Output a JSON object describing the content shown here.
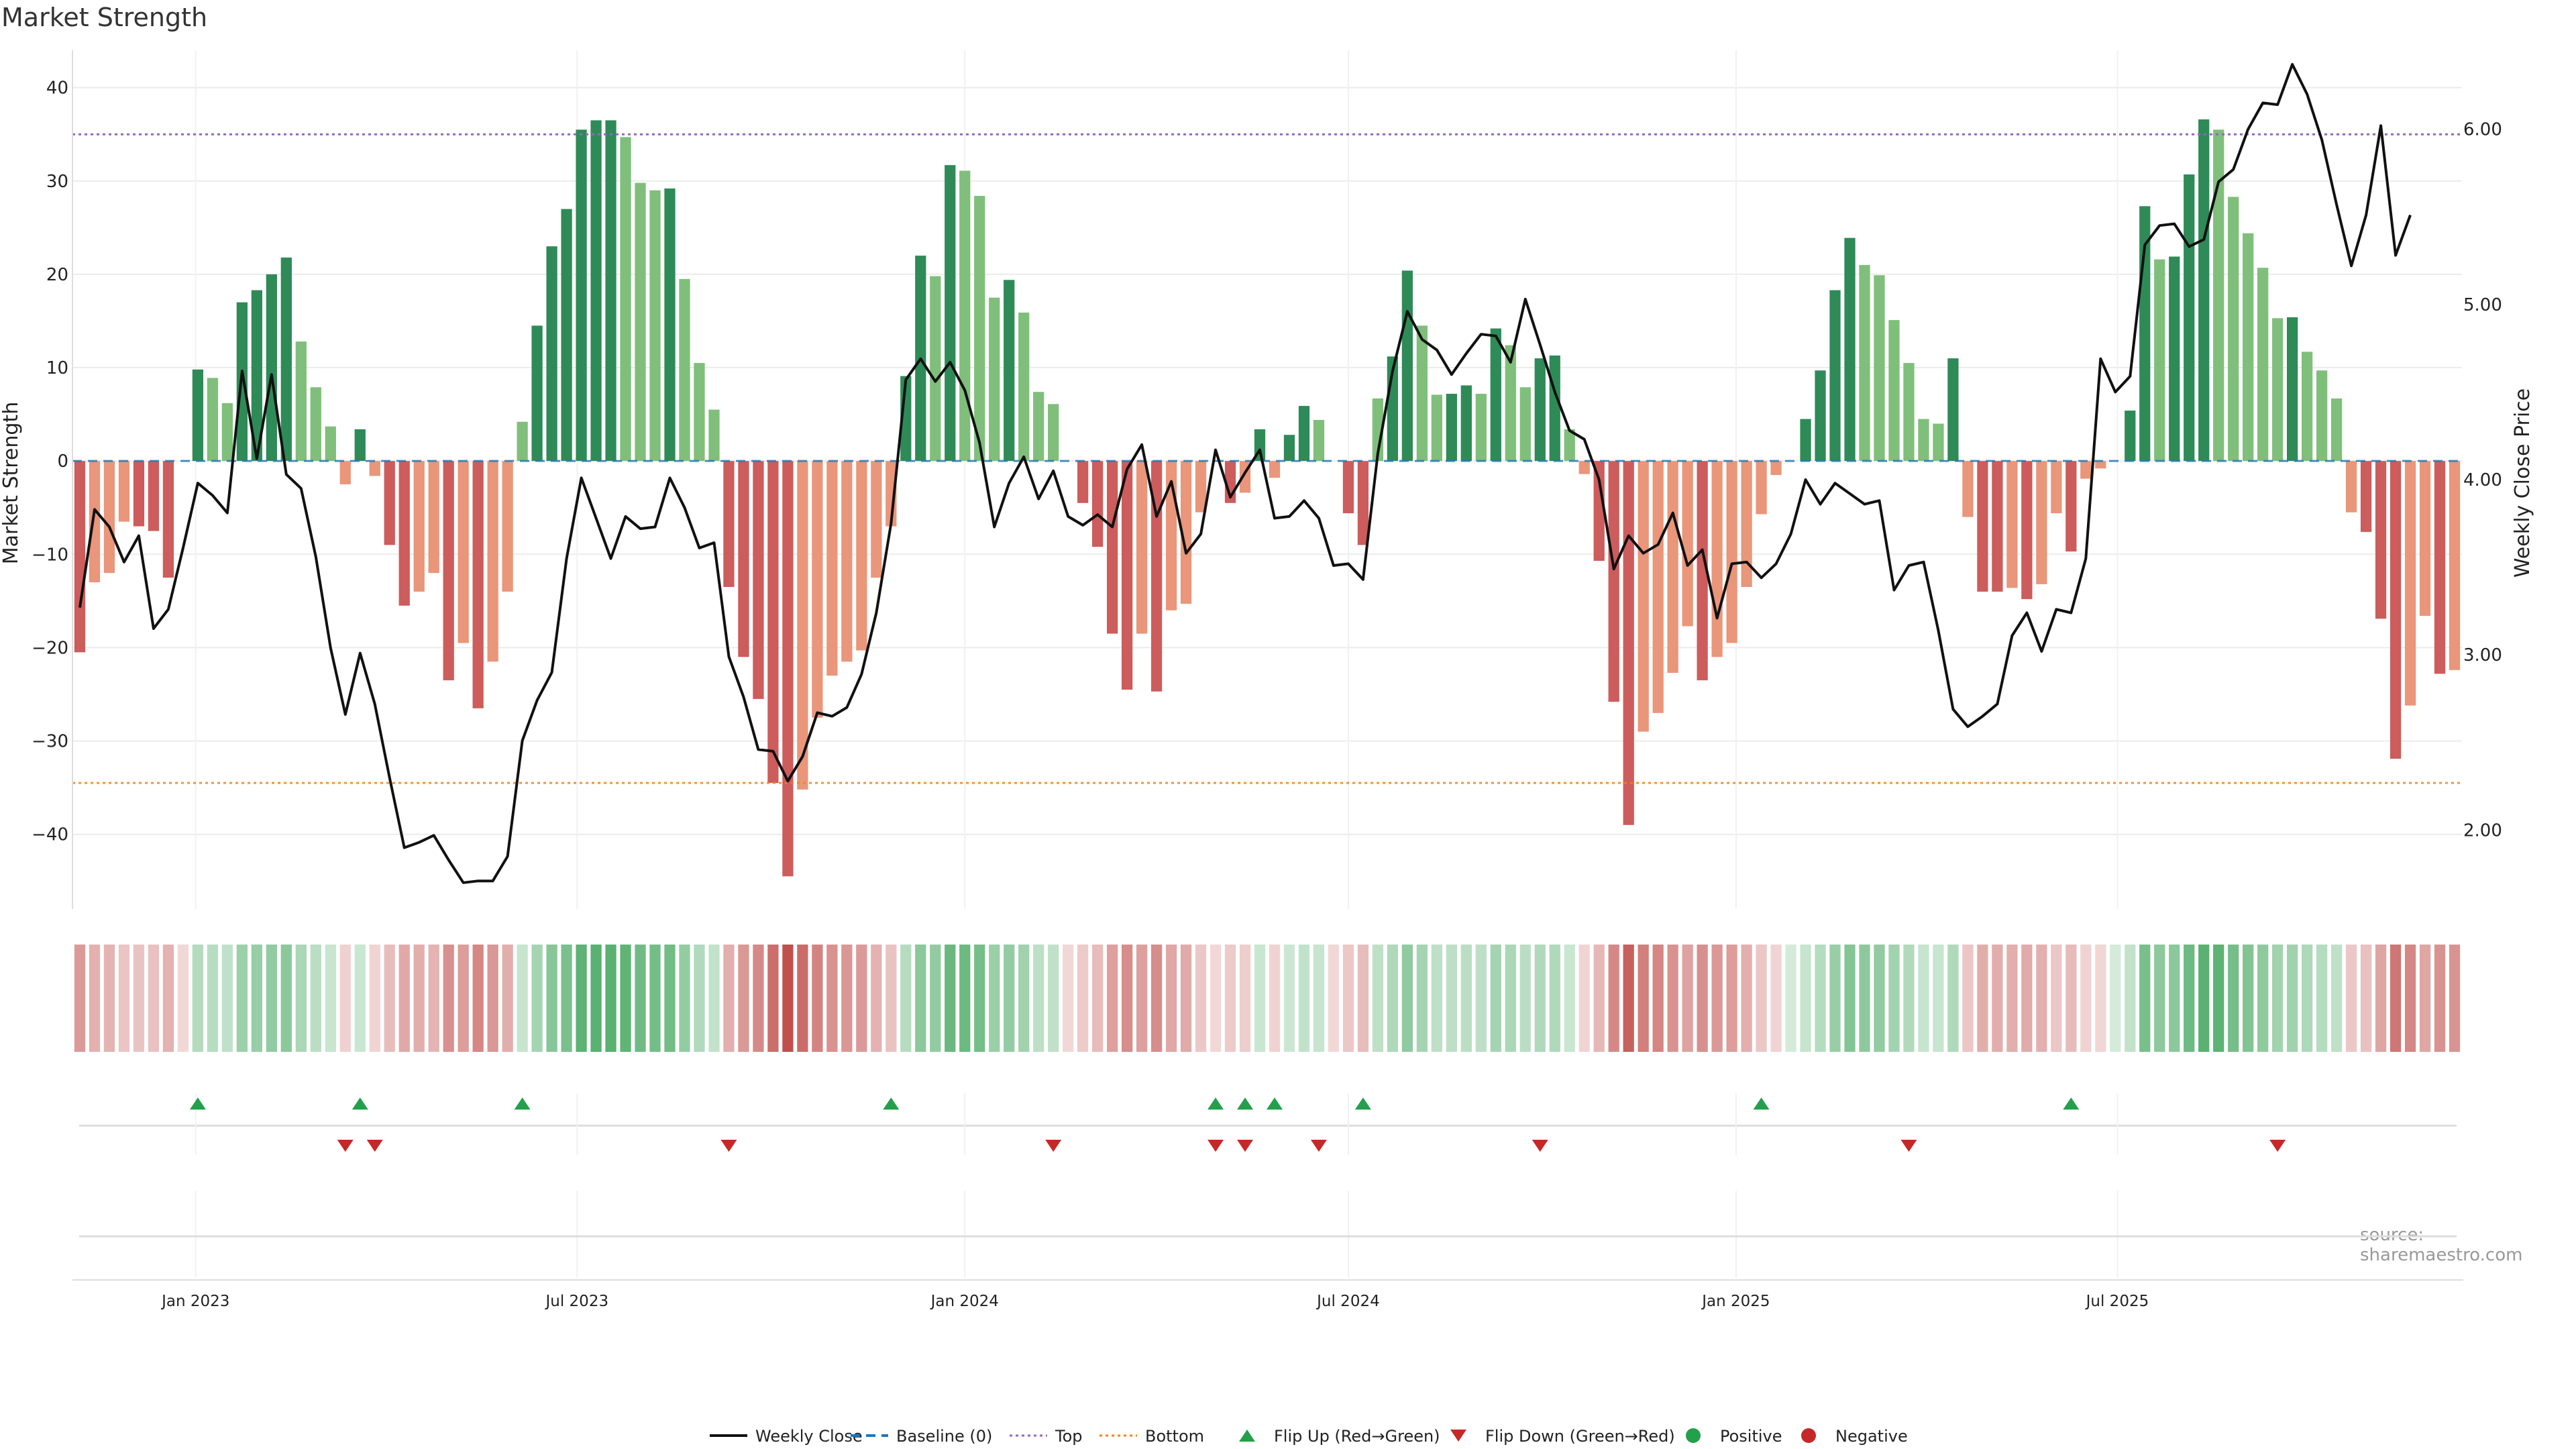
{
  "title": "Market Strength",
  "source_note": "source: sharemaestro.com",
  "colors": {
    "pos_strong": "#2e8b57",
    "pos_weak": "#7fbf7b",
    "neg_strong": "#cd5c5c",
    "neg_weak": "#e9967a",
    "price_line": "#111111",
    "baseline": "#1f77b4",
    "top_line": "#9467bd",
    "bottom_line": "#ff7f0e",
    "flip_up": "#22a04b",
    "flip_down": "#c62828",
    "positive": "#22a04b",
    "negative": "#c62828"
  },
  "chart_data": {
    "type": "bar",
    "title": "Market Strength",
    "ylabel": "Market Strength",
    "y2label": "Weekly Close Price",
    "ylim": [
      -48,
      44
    ],
    "y2lim": [
      1.55,
      6.45
    ],
    "yticks": [
      -40,
      -30,
      -20,
      -10,
      0,
      10,
      20,
      30,
      40
    ],
    "y2ticks": [
      "2.00",
      "3.00",
      "4.00",
      "5.00",
      "6.00"
    ],
    "y2tick_values": [
      2,
      3,
      4,
      5,
      6
    ],
    "top_threshold": 35,
    "bottom_threshold": -34.5,
    "x_start": "2022-11-07",
    "x_tick_labels": [
      "Jan 2023",
      "Jul 2023",
      "Jan 2024",
      "Jul 2024",
      "Jan 2025",
      "Jul 2025"
    ],
    "x_tick_dates": [
      "2023-01-01",
      "2023-07-01",
      "2024-01-01",
      "2024-07-01",
      "2025-01-01",
      "2025-07-01"
    ],
    "strength": [
      -20.5,
      -13,
      -12,
      -6.5,
      -7,
      -7.5,
      -12.5,
      -0.3,
      9.8,
      8.9,
      6.2,
      17,
      18.3,
      20,
      21.8,
      12.8,
      7.9,
      3.7,
      -2.5,
      3.4,
      -1.6,
      -9,
      -15.5,
      -14,
      -12,
      -23.5,
      -19.5,
      -26.5,
      -21.5,
      -14,
      4.2,
      14.5,
      23,
      27,
      35.5,
      36.5,
      36.5,
      34.7,
      29.8,
      29,
      29.2,
      19.5,
      10.5,
      5.5,
      -13.5,
      -21,
      -25.5,
      -34.5,
      -44.5,
      -35.2,
      -27.5,
      -23,
      -21.5,
      -20.3,
      -12.5,
      -7,
      9.1,
      22,
      19.8,
      31.7,
      31.1,
      28.4,
      17.5,
      19.4,
      15.9,
      7.4,
      6.1,
      -0.2,
      -4.5,
      -9.2,
      -18.5,
      -24.5,
      -18.5,
      -24.7,
      -16,
      -15.3,
      -5.5,
      -0.3,
      -4.5,
      -3.4,
      3.4,
      -1.8,
      2.8,
      5.9,
      4.4,
      -0.2,
      -5.6,
      -9,
      6.7,
      11.2,
      20.4,
      14.5,
      7.1,
      7.2,
      8.1,
      7.2,
      14.2,
      12.4,
      7.9,
      11,
      11.3,
      3.4,
      -1.4,
      -10.7,
      -25.8,
      -39,
      -29,
      -27,
      -22.7,
      -17.7,
      -23.5,
      -21,
      -19.5,
      -13.5,
      -5.7,
      -1.5,
      0.2,
      4.5,
      9.7,
      18.3,
      23.9,
      21,
      19.9,
      15.1,
      10.5,
      4.5,
      4,
      11,
      -6,
      -14,
      -14,
      -13.6,
      -14.8,
      -13.2,
      -5.6,
      -9.7,
      -1.9,
      -0.8,
      0.3,
      5.4,
      27.3,
      21.6,
      21.9,
      30.7,
      36.6,
      35.5,
      28.3,
      24.4,
      20.7,
      15.3,
      15.4,
      11.7,
      9.7,
      6.7,
      -5.5,
      -7.6,
      -16.9,
      -31.9,
      -26.2,
      -16.6,
      -22.8,
      -22.4
    ],
    "weekly_close": [
      3.27,
      3.83,
      3.73,
      3.53,
      3.68,
      3.15,
      3.26,
      3.61,
      3.98,
      3.91,
      3.81,
      4.62,
      4.12,
      4.6,
      4.03,
      3.95,
      3.56,
      3.04,
      2.66,
      3.01,
      2.72,
      2.3,
      1.9,
      1.93,
      1.97,
      1.83,
      1.7,
      1.71,
      1.71,
      1.85,
      2.51,
      2.74,
      2.9,
      3.55,
      4.01,
      3.78,
      3.55,
      3.79,
      3.72,
      3.73,
      4.01,
      3.84,
      3.61,
      3.64,
      2.99,
      2.76,
      2.46,
      2.45,
      2.28,
      2.42,
      2.67,
      2.65,
      2.7,
      2.89,
      3.24,
      3.75,
      4.57,
      4.69,
      4.56,
      4.67,
      4.51,
      4.21,
      3.73,
      3.98,
      4.13,
      3.89,
      4.05,
      3.79,
      3.74,
      3.8,
      3.73,
      4.06,
      4.2,
      3.79,
      3.99,
      3.58,
      3.69,
      4.17,
      3.9,
      4.04,
      4.17,
      3.78,
      3.79,
      3.88,
      3.78,
      3.51,
      3.52,
      3.43,
      4.15,
      4.62,
      4.96,
      4.8,
      4.74,
      4.6,
      4.72,
      4.83,
      4.82,
      4.67,
      5.03,
      4.77,
      4.5,
      4.28,
      4.23,
      4.0,
      3.49,
      3.68,
      3.58,
      3.63,
      3.81,
      3.51,
      3.6,
      3.21,
      3.52,
      3.53,
      3.44,
      3.52,
      3.69,
      4.0,
      3.86,
      3.98,
      3.92,
      3.86,
      3.88,
      3.37,
      3.51,
      3.53,
      3.14,
      2.69,
      2.59,
      2.65,
      2.72,
      3.11,
      3.24,
      3.02,
      3.26,
      3.24,
      3.55,
      4.69,
      4.5,
      4.59,
      5.34,
      5.45,
      5.46,
      5.33,
      5.37,
      5.7,
      5.77,
      6.0,
      6.15,
      6.14,
      6.37,
      6.2,
      5.94,
      5.57,
      5.22,
      5.51,
      6.02,
      5.28,
      5.51
    ],
    "flip_up": [
      8,
      19,
      30,
      55,
      77,
      79,
      81,
      87,
      114,
      135
    ],
    "flip_down": [
      18,
      20,
      44,
      66,
      77,
      79,
      84,
      99,
      124,
      149
    ]
  },
  "legend": [
    {
      "label": "Weekly Close",
      "kind": "line"
    },
    {
      "label": "Baseline (0)",
      "kind": "dash"
    },
    {
      "label": "Top",
      "kind": "dot-purple"
    },
    {
      "label": "Bottom",
      "kind": "dot-orange"
    },
    {
      "label": "Flip Up (Red→Green)",
      "kind": "tri-up"
    },
    {
      "label": "Flip Down (Green→Red)",
      "kind": "tri-down"
    },
    {
      "label": "Positive",
      "kind": "dot-green"
    },
    {
      "label": "Negative",
      "kind": "dot-red"
    }
  ]
}
